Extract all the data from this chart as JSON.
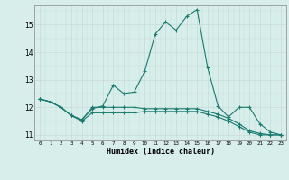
{
  "title": "",
  "xlabel": "Humidex (Indice chaleur)",
  "ylabel": "",
  "background_color": "#d7eeeb",
  "grid_color_major": "#c8dbd8",
  "grid_color_minor": "#e0f0ee",
  "line_color": "#1a7a6e",
  "xlim": [
    -0.5,
    23.5
  ],
  "ylim": [
    10.8,
    15.7
  ],
  "yticks": [
    11,
    12,
    13,
    14,
    15
  ],
  "xticks": [
    0,
    1,
    2,
    3,
    4,
    5,
    6,
    7,
    8,
    9,
    10,
    11,
    12,
    13,
    14,
    15,
    16,
    17,
    18,
    19,
    20,
    21,
    22,
    23
  ],
  "series": [
    [
      12.3,
      12.2,
      12.0,
      11.7,
      11.55,
      11.95,
      12.05,
      12.8,
      12.5,
      12.55,
      13.3,
      14.65,
      15.1,
      14.8,
      15.3,
      15.55,
      13.45,
      12.05,
      11.65,
      12.0,
      12.0,
      11.4,
      11.1,
      11.0
    ],
    [
      12.3,
      12.2,
      12.0,
      11.7,
      11.55,
      12.0,
      12.0,
      12.0,
      12.0,
      12.0,
      11.95,
      11.95,
      11.95,
      11.95,
      11.95,
      11.95,
      11.85,
      11.75,
      11.6,
      11.4,
      11.15,
      11.05,
      11.0,
      11.0
    ],
    [
      12.3,
      12.2,
      12.0,
      11.7,
      11.5,
      11.8,
      11.8,
      11.8,
      11.8,
      11.8,
      11.85,
      11.85,
      11.85,
      11.85,
      11.85,
      11.85,
      11.75,
      11.65,
      11.5,
      11.3,
      11.1,
      11.0,
      11.0,
      11.0
    ]
  ],
  "figwidth": 3.2,
  "figheight": 2.0,
  "dpi": 100
}
